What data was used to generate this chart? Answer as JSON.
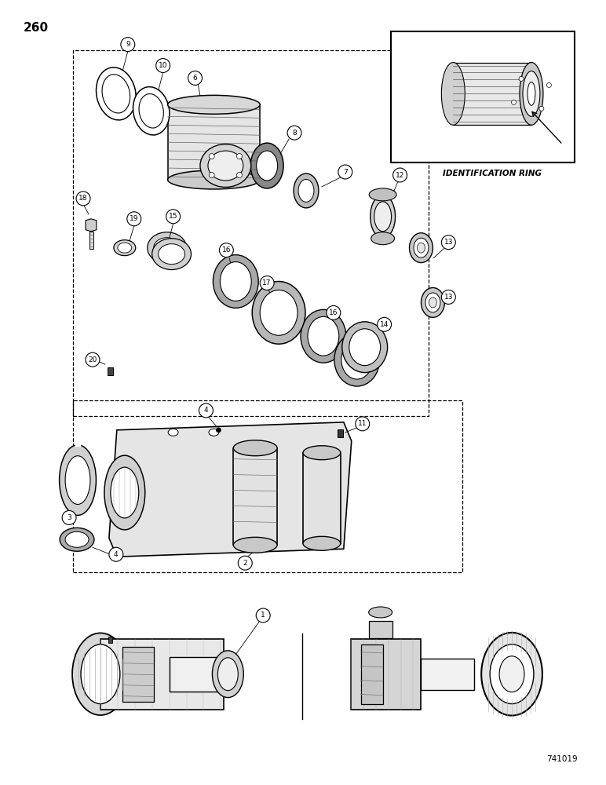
{
  "page_number": "260",
  "doc_number": "741019",
  "id_ring_label": "IDENTIFICATION RING",
  "background_color": "#ffffff",
  "line_color": "#000000",
  "figsize": [
    7.72,
    10.0
  ],
  "dpi": 100
}
